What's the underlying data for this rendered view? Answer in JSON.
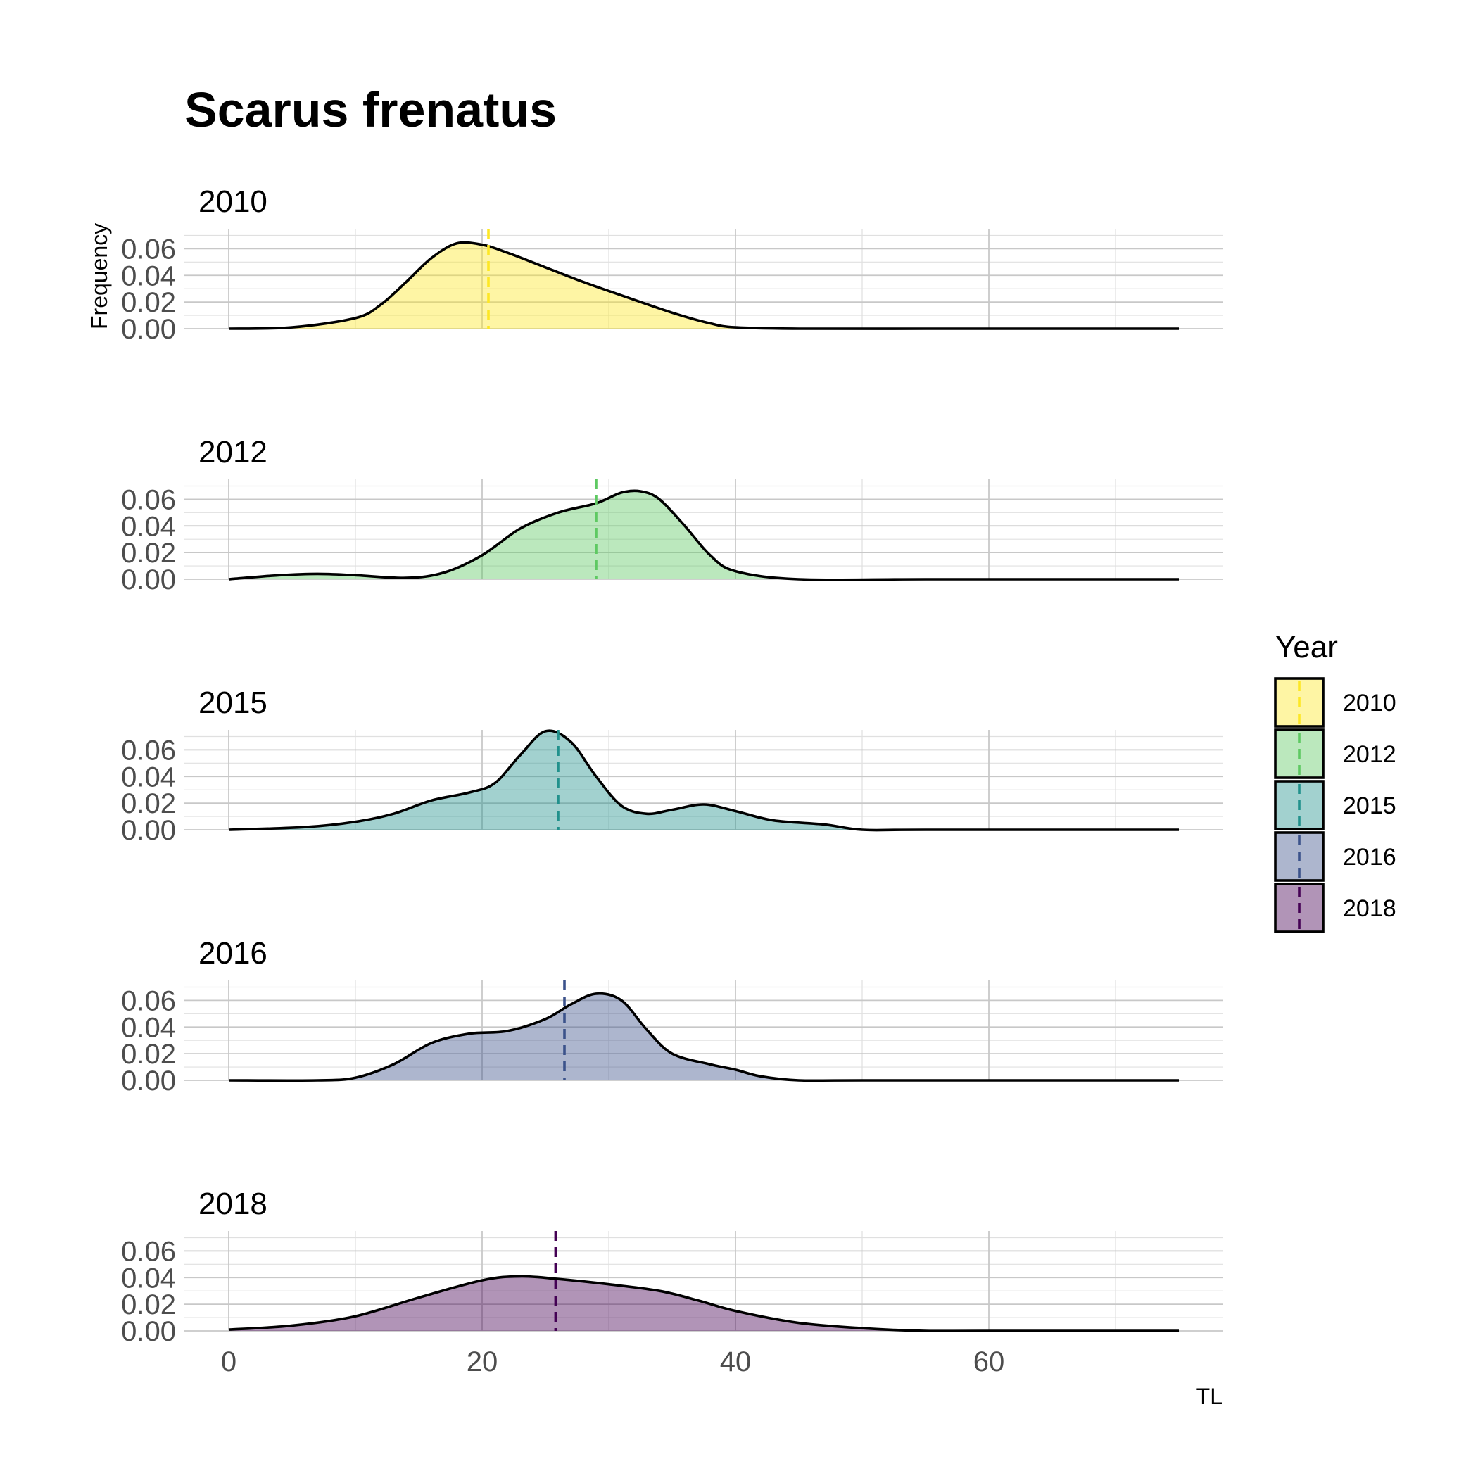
{
  "chart_data": {
    "type": "area",
    "title": "Scarus frenatus",
    "xlabel": "TL",
    "ylabel": "Frequency",
    "xlim": [
      -3.5,
      78.5
    ],
    "ylim": [
      0,
      0.075
    ],
    "x_ticks": [
      0,
      20,
      40,
      60
    ],
    "y_ticks": [
      0.0,
      0.02,
      0.04,
      0.06
    ],
    "y_tick_labels": [
      "0.00",
      "0.02",
      "0.04",
      "0.06"
    ],
    "grid": true,
    "legend": {
      "title": "Year",
      "placement": "right"
    },
    "panels": [
      {
        "name": "2010",
        "color": "#FDE725",
        "mean": 20.5,
        "x": [
          0,
          5,
          10,
          12,
          14,
          16,
          18,
          20,
          22,
          25,
          28,
          31,
          35,
          38,
          40,
          45,
          55,
          65,
          75
        ],
        "y": [
          0.0,
          0.001,
          0.008,
          0.018,
          0.035,
          0.053,
          0.064,
          0.063,
          0.057,
          0.046,
          0.035,
          0.025,
          0.012,
          0.004,
          0.001,
          0.0,
          0.0,
          0.0,
          0.0
        ]
      },
      {
        "name": "2012",
        "color": "#5EC962",
        "mean": 29.0,
        "x": [
          0,
          4,
          7,
          10,
          14,
          17,
          20,
          23,
          26,
          29,
          31,
          32.5,
          34,
          36,
          38,
          40,
          45,
          55,
          75
        ],
        "y": [
          0.0,
          0.003,
          0.004,
          0.003,
          0.001,
          0.005,
          0.018,
          0.038,
          0.05,
          0.057,
          0.065,
          0.066,
          0.06,
          0.04,
          0.018,
          0.006,
          0.0,
          0.0,
          0.0
        ]
      },
      {
        "name": "2015",
        "color": "#21918C",
        "mean": 26.0,
        "x": [
          0,
          6,
          10,
          13,
          16,
          19,
          21,
          23,
          25,
          27,
          29,
          31,
          33,
          35,
          37.5,
          40,
          43,
          47,
          50,
          55,
          75
        ],
        "y": [
          0.0,
          0.002,
          0.006,
          0.012,
          0.022,
          0.028,
          0.035,
          0.056,
          0.074,
          0.066,
          0.04,
          0.018,
          0.012,
          0.015,
          0.019,
          0.014,
          0.007,
          0.004,
          0.0,
          0.0,
          0.0
        ]
      },
      {
        "name": "2016",
        "color": "#3B528B",
        "mean": 26.5,
        "x": [
          0,
          7,
          10,
          13,
          16,
          19,
          22,
          25,
          27,
          29,
          31,
          33,
          35,
          38,
          40,
          42,
          45,
          50,
          75
        ],
        "y": [
          0.0,
          0.0,
          0.002,
          0.012,
          0.028,
          0.035,
          0.037,
          0.046,
          0.057,
          0.065,
          0.06,
          0.038,
          0.02,
          0.012,
          0.008,
          0.003,
          0.0,
          0.0,
          0.0
        ]
      },
      {
        "name": "2018",
        "color": "#440154",
        "mean": 25.8,
        "x": [
          0,
          5,
          10,
          15,
          20,
          23,
          26,
          30,
          34,
          37,
          40,
          45,
          50,
          55,
          60,
          75
        ],
        "y": [
          0.001,
          0.004,
          0.011,
          0.025,
          0.038,
          0.041,
          0.039,
          0.035,
          0.03,
          0.023,
          0.015,
          0.006,
          0.002,
          0.0,
          0.0,
          0.0
        ]
      }
    ]
  }
}
